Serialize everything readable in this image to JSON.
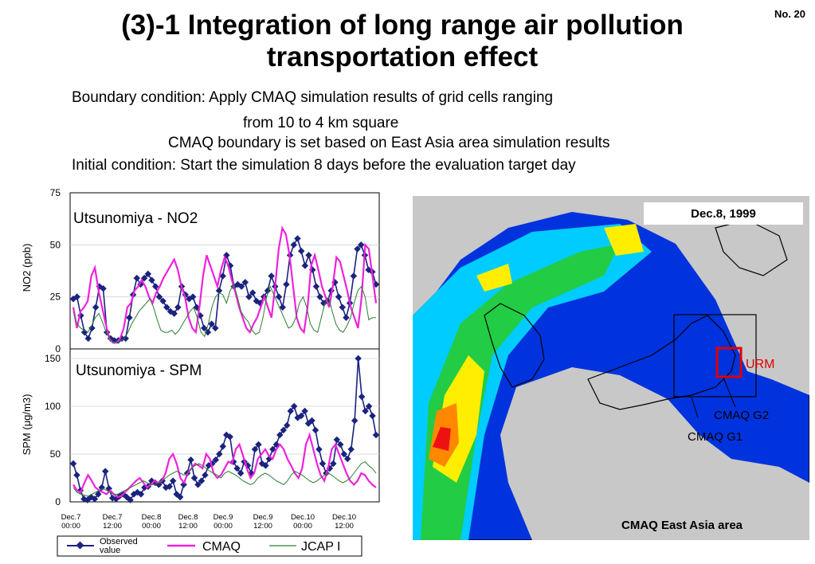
{
  "slide": {
    "number": "No. 20",
    "title_line1": "(3)-1 Integration of long range air pollution",
    "title_line2": "transportation effect",
    "bullets": [
      "Boundary condition: Apply CMAQ simulation results of grid cells ranging",
      "from 10 to 4 km square",
      "CMAQ boundary is set based on East Asia area simulation results",
      "Initial condition: Start the simulation 8 days before the evaluation target day"
    ]
  },
  "chart_data": [
    {
      "type": "line",
      "title": "Utsunomiya - NO2",
      "ylabel": "NO2 (ppb)",
      "ylim": [
        0,
        75
      ],
      "yticks": [
        "0",
        "25",
        "50",
        "75"
      ],
      "x_labels": [],
      "series": [
        {
          "name": "Observed value",
          "color": "#1a237e",
          "values": [
            24,
            25,
            16,
            8,
            5,
            10,
            20,
            30,
            29,
            8,
            5,
            4,
            4,
            5,
            5,
            15,
            26,
            34,
            31,
            34,
            36,
            33,
            30,
            25,
            23,
            20,
            18,
            17,
            20,
            30,
            26,
            24,
            25,
            20,
            16,
            10,
            8,
            12,
            10,
            28,
            35,
            45,
            40,
            30,
            31,
            30,
            32,
            25,
            27,
            23,
            22,
            25,
            28,
            35,
            30,
            25,
            20,
            31,
            45,
            50,
            53,
            47,
            40,
            45,
            38,
            30,
            25,
            22,
            23,
            28,
            32,
            25,
            20,
            15,
            22,
            35,
            48,
            50,
            45,
            38,
            37,
            31
          ]
        },
        {
          "name": "CMAQ",
          "color": "#ee22dd",
          "values": [
            20,
            10,
            18,
            20,
            23,
            35,
            39,
            28,
            20,
            12,
            5,
            3,
            3,
            5,
            10,
            20,
            22,
            28,
            30,
            33,
            30,
            25,
            22,
            27,
            30,
            34,
            37,
            40,
            43,
            38,
            30,
            25,
            15,
            10,
            8,
            20,
            35,
            45,
            40,
            35,
            30,
            38,
            44,
            40,
            33,
            27,
            20,
            15,
            10,
            8,
            12,
            15,
            20,
            25,
            20,
            15,
            30,
            48,
            58,
            55,
            45,
            30,
            15,
            10,
            8,
            20,
            40,
            45,
            38,
            30,
            25,
            20,
            30,
            44,
            42,
            35,
            28,
            20,
            15,
            10,
            25,
            50,
            48,
            35,
            22
          ]
        },
        {
          "name": "JCAP I",
          "color": "#2e7d32",
          "values": [
            18,
            12,
            10,
            9,
            8,
            11,
            15,
            17,
            13,
            8,
            5,
            3,
            3,
            4,
            5,
            8,
            12,
            15,
            18,
            20,
            22,
            24,
            20,
            14,
            9,
            8,
            8,
            9,
            7,
            9,
            12,
            15,
            18,
            20,
            15,
            8,
            6,
            12,
            20,
            25,
            27,
            26,
            22,
            28,
            31,
            25,
            18,
            15,
            13,
            9,
            7,
            8,
            15,
            25,
            30,
            26,
            22,
            18,
            14,
            10,
            11,
            15,
            22,
            25,
            20,
            12,
            9,
            8,
            15,
            22,
            25,
            18,
            12,
            9,
            8,
            11,
            15,
            22,
            28,
            30,
            25,
            14,
            15,
            15
          ]
        }
      ]
    },
    {
      "type": "line",
      "title": "Utsunomiya - SPM",
      "ylabel": "SPM (μg/m3)",
      "ylim": [
        0,
        160
      ],
      "yticks": [
        "0",
        "50",
        "100",
        "150"
      ],
      "x_labels": [
        [
          "Dec.7",
          "00:00"
        ],
        [
          "Dec.7",
          "12:00"
        ],
        [
          "Dec.8",
          "00:00"
        ],
        [
          "Dec.8",
          "12:00"
        ],
        [
          "Dec.9",
          "00:00"
        ],
        [
          "Dec.9",
          "12:00"
        ],
        [
          "Dec.10",
          "00:00"
        ],
        [
          "Dec.10",
          "12:00"
        ]
      ],
      "series": [
        {
          "name": "Observed value",
          "color": "#1a237e",
          "values": [
            40,
            28,
            12,
            3,
            2,
            5,
            3,
            8,
            15,
            32,
            14,
            4,
            3,
            6,
            8,
            5,
            2,
            8,
            10,
            8,
            15,
            16,
            22,
            20,
            18,
            22,
            15,
            16,
            22,
            8,
            5,
            18,
            30,
            44,
            25,
            18,
            22,
            28,
            38,
            40,
            44,
            50,
            58,
            70,
            68,
            42,
            35,
            30,
            42,
            38,
            30,
            55,
            60,
            40,
            38,
            45,
            55,
            60,
            70,
            75,
            80,
            95,
            100,
            88,
            90,
            95,
            82,
            85,
            75,
            55,
            40,
            30,
            35,
            40,
            65,
            60,
            50,
            45,
            55,
            85,
            150,
            110,
            95,
            100,
            90,
            70
          ]
        },
        {
          "name": "CMAQ",
          "color": "#ee22dd",
          "values": [
            18,
            12,
            10,
            20,
            28,
            22,
            15,
            12,
            10,
            8,
            12,
            8,
            5,
            6,
            10,
            14,
            18,
            22,
            25,
            20,
            15,
            18,
            22,
            20,
            22,
            30,
            45,
            50,
            40,
            25,
            20,
            30,
            35,
            40,
            38,
            35,
            50,
            45,
            30,
            25,
            28,
            35,
            42,
            40,
            55,
            60,
            48,
            35,
            25,
            30,
            45,
            50,
            55,
            48,
            45,
            55,
            60,
            55,
            45,
            38,
            30,
            25,
            35,
            60,
            70,
            55,
            40,
            28,
            22,
            35,
            55,
            60,
            50,
            40,
            30,
            22,
            18,
            22,
            30,
            28,
            22,
            18,
            15
          ]
        },
        {
          "name": "JCAP I",
          "color": "#2e7d32",
          "values": [
            15,
            10,
            8,
            7,
            6,
            8,
            10,
            12,
            14,
            12,
            10,
            8,
            8,
            10,
            12,
            14,
            16,
            18,
            20,
            22,
            20,
            18,
            18,
            20,
            22,
            25,
            28,
            30,
            32,
            30,
            28,
            30,
            35,
            38,
            40,
            38,
            35,
            32,
            30,
            28,
            25,
            30,
            32,
            30,
            28,
            25,
            22,
            20,
            18,
            20,
            25,
            28,
            30,
            28,
            25,
            22,
            20,
            18,
            22,
            28,
            32,
            30,
            28,
            25,
            22,
            20,
            22,
            25,
            28,
            30,
            28,
            25,
            22,
            20,
            22,
            25,
            30,
            35,
            40,
            42,
            38,
            35,
            30
          ]
        }
      ]
    }
  ],
  "legend": {
    "observed_line1": "Observed",
    "observed_line2": "value",
    "cmaq": "CMAQ",
    "jcap": "JCAP I"
  },
  "map": {
    "date": "Dec.8, 1999",
    "label_urm": "URM",
    "label_g2": "CMAQ G2",
    "label_g1": "CMAQ G1",
    "label_area": "CMAQ East Asia area",
    "colors": {
      "land": "#c8c8c8",
      "low": "#0033dd",
      "mid": "#00ccff",
      "green": "#22cc44",
      "yellow": "#ffee00",
      "high": "#ee1111"
    }
  }
}
